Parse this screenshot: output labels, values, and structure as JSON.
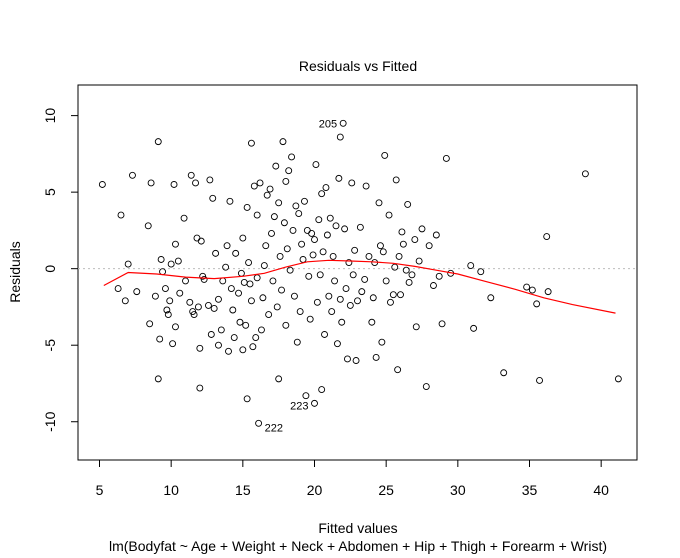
{
  "chart_data": {
    "type": "scatter",
    "title": "Residuals vs Fitted",
    "xlabel": "Fitted values",
    "subtitle": "lm(Bodyfat ~ Age + Weight + Neck + Abdomen + Hip + Thigh + Forearm + Wrist)",
    "ylabel": "Residuals",
    "xlim": [
      3.5,
      42.5
    ],
    "ylim": [
      -12.5,
      12
    ],
    "xticks": [
      5,
      10,
      15,
      20,
      25,
      30,
      35,
      40
    ],
    "yticks": [
      -10,
      -5,
      0,
      5,
      10
    ],
    "grid": false,
    "reference_line": {
      "y": 0,
      "style": "dotted",
      "color": "#bdbdbd"
    },
    "smoother": {
      "color": "#ff0000",
      "x": [
        5.3,
        7,
        9,
        11,
        13,
        15,
        16.5,
        18,
        19.5,
        21,
        22.5,
        24,
        25.5,
        27,
        28.5,
        30,
        32,
        34,
        36,
        38,
        41
      ],
      "y": [
        -1.1,
        -0.25,
        -0.35,
        -0.55,
        -0.65,
        -0.5,
        -0.3,
        0.1,
        0.45,
        0.55,
        0.5,
        0.45,
        0.35,
        0.15,
        -0.1,
        -0.35,
        -0.85,
        -1.35,
        -1.9,
        -2.35,
        -2.9
      ]
    },
    "labeled_points": [
      {
        "label": "205",
        "x": 22.0,
        "y": 9.5
      },
      {
        "label": "223",
        "x": 20.0,
        "y": -8.8
      },
      {
        "label": "222",
        "x": 16.1,
        "y": -10.1
      }
    ],
    "points": [
      {
        "x": 5.2,
        "y": 5.5
      },
      {
        "x": 6.3,
        "y": -1.3
      },
      {
        "x": 6.5,
        "y": 3.5
      },
      {
        "x": 6.8,
        "y": -2.1
      },
      {
        "x": 7.0,
        "y": 0.3
      },
      {
        "x": 7.3,
        "y": 6.1
      },
      {
        "x": 7.6,
        "y": -1.5
      },
      {
        "x": 8.4,
        "y": 2.8
      },
      {
        "x": 8.6,
        "y": 5.6
      },
      {
        "x": 8.5,
        "y": -3.6
      },
      {
        "x": 8.9,
        "y": -1.8
      },
      {
        "x": 9.1,
        "y": 8.3
      },
      {
        "x": 9.1,
        "y": -7.2
      },
      {
        "x": 9.2,
        "y": -4.6
      },
      {
        "x": 9.3,
        "y": 0.6
      },
      {
        "x": 9.4,
        "y": -0.2
      },
      {
        "x": 9.6,
        "y": -1.3
      },
      {
        "x": 9.7,
        "y": -2.7
      },
      {
        "x": 9.8,
        "y": -3.0
      },
      {
        "x": 9.9,
        "y": -2.1
      },
      {
        "x": 10.0,
        "y": 0.3
      },
      {
        "x": 10.1,
        "y": -4.9
      },
      {
        "x": 10.2,
        "y": 5.5
      },
      {
        "x": 10.3,
        "y": -3.8
      },
      {
        "x": 10.3,
        "y": 1.6
      },
      {
        "x": 10.5,
        "y": 0.5
      },
      {
        "x": 10.6,
        "y": -1.6
      },
      {
        "x": 10.9,
        "y": 3.3
      },
      {
        "x": 11.0,
        "y": -0.8
      },
      {
        "x": 11.3,
        "y": -2.2
      },
      {
        "x": 11.4,
        "y": 6.1
      },
      {
        "x": 11.5,
        "y": -2.8
      },
      {
        "x": 11.6,
        "y": -3.0
      },
      {
        "x": 11.7,
        "y": 5.6
      },
      {
        "x": 11.8,
        "y": 2.0
      },
      {
        "x": 11.9,
        "y": -2.5
      },
      {
        "x": 12.0,
        "y": -5.2
      },
      {
        "x": 12.0,
        "y": -7.8
      },
      {
        "x": 12.1,
        "y": 1.8
      },
      {
        "x": 12.2,
        "y": -0.5
      },
      {
        "x": 12.3,
        "y": -0.7
      },
      {
        "x": 12.6,
        "y": -2.4
      },
      {
        "x": 12.7,
        "y": 5.8
      },
      {
        "x": 12.8,
        "y": -4.3
      },
      {
        "x": 12.9,
        "y": 4.6
      },
      {
        "x": 13.0,
        "y": -2.6
      },
      {
        "x": 13.1,
        "y": 1.0
      },
      {
        "x": 13.3,
        "y": -2.0
      },
      {
        "x": 13.3,
        "y": -5.0
      },
      {
        "x": 13.5,
        "y": -4.0
      },
      {
        "x": 13.6,
        "y": -0.8
      },
      {
        "x": 13.8,
        "y": 0.1
      },
      {
        "x": 13.9,
        "y": 1.5
      },
      {
        "x": 14.0,
        "y": -5.4
      },
      {
        "x": 14.1,
        "y": 4.4
      },
      {
        "x": 14.2,
        "y": -1.3
      },
      {
        "x": 14.3,
        "y": -2.7
      },
      {
        "x": 14.4,
        "y": -4.5
      },
      {
        "x": 14.5,
        "y": 1.0
      },
      {
        "x": 14.7,
        "y": -1.6
      },
      {
        "x": 14.8,
        "y": -3.5
      },
      {
        "x": 14.9,
        "y": -0.3
      },
      {
        "x": 15.0,
        "y": 2.0
      },
      {
        "x": 15.0,
        "y": -5.3
      },
      {
        "x": 15.1,
        "y": -0.9
      },
      {
        "x": 15.2,
        "y": -3.7
      },
      {
        "x": 15.3,
        "y": 4.0
      },
      {
        "x": 15.3,
        "y": -8.5
      },
      {
        "x": 15.4,
        "y": 0.4
      },
      {
        "x": 15.5,
        "y": -1.0
      },
      {
        "x": 15.6,
        "y": 8.2
      },
      {
        "x": 15.6,
        "y": -2.1
      },
      {
        "x": 15.7,
        "y": -5.1
      },
      {
        "x": 15.8,
        "y": 5.4
      },
      {
        "x": 15.9,
        "y": -4.5
      },
      {
        "x": 16.0,
        "y": 3.5
      },
      {
        "x": 16.0,
        "y": -0.6
      },
      {
        "x": 16.1,
        "y": -10.1
      },
      {
        "x": 16.2,
        "y": 5.6
      },
      {
        "x": 16.3,
        "y": -4.0
      },
      {
        "x": 16.4,
        "y": -1.9
      },
      {
        "x": 16.5,
        "y": 0.2
      },
      {
        "x": 16.6,
        "y": 1.5
      },
      {
        "x": 16.7,
        "y": 4.8
      },
      {
        "x": 16.8,
        "y": -3.0
      },
      {
        "x": 16.9,
        "y": 5.2
      },
      {
        "x": 17.0,
        "y": 2.3
      },
      {
        "x": 17.1,
        "y": -0.8
      },
      {
        "x": 17.2,
        "y": 3.4
      },
      {
        "x": 17.3,
        "y": 6.7
      },
      {
        "x": 17.4,
        "y": -2.5
      },
      {
        "x": 17.5,
        "y": -7.2
      },
      {
        "x": 17.5,
        "y": 4.3
      },
      {
        "x": 17.6,
        "y": 0.8
      },
      {
        "x": 17.7,
        "y": -1.4
      },
      {
        "x": 17.8,
        "y": 8.3
      },
      {
        "x": 17.9,
        "y": 3.0
      },
      {
        "x": 18.0,
        "y": 5.7
      },
      {
        "x": 18.0,
        "y": -3.7
      },
      {
        "x": 18.1,
        "y": 1.3
      },
      {
        "x": 18.2,
        "y": 6.4
      },
      {
        "x": 18.3,
        "y": -0.1
      },
      {
        "x": 18.4,
        "y": 7.3
      },
      {
        "x": 18.5,
        "y": 2.5
      },
      {
        "x": 18.6,
        "y": -1.8
      },
      {
        "x": 18.7,
        "y": 4.1
      },
      {
        "x": 18.8,
        "y": -4.8
      },
      {
        "x": 18.9,
        "y": 3.6
      },
      {
        "x": 19.0,
        "y": -2.8
      },
      {
        "x": 19.1,
        "y": 1.6
      },
      {
        "x": 19.2,
        "y": 0.6
      },
      {
        "x": 19.3,
        "y": 4.4
      },
      {
        "x": 19.4,
        "y": -8.3
      },
      {
        "x": 19.5,
        "y": 2.5
      },
      {
        "x": 19.6,
        "y": -0.5
      },
      {
        "x": 19.7,
        "y": -3.3
      },
      {
        "x": 19.8,
        "y": 2.3
      },
      {
        "x": 19.9,
        "y": 0.9
      },
      {
        "x": 20.0,
        "y": -8.8
      },
      {
        "x": 20.0,
        "y": 1.9
      },
      {
        "x": 20.1,
        "y": 6.8
      },
      {
        "x": 20.2,
        "y": -2.2
      },
      {
        "x": 20.3,
        "y": 3.2
      },
      {
        "x": 20.4,
        "y": -0.4
      },
      {
        "x": 20.5,
        "y": -7.9
      },
      {
        "x": 20.5,
        "y": 4.9
      },
      {
        "x": 20.6,
        "y": 1.1
      },
      {
        "x": 20.7,
        "y": -4.3
      },
      {
        "x": 20.8,
        "y": 5.3
      },
      {
        "x": 20.9,
        "y": 2.2
      },
      {
        "x": 21.0,
        "y": -1.8
      },
      {
        "x": 21.1,
        "y": 3.3
      },
      {
        "x": 21.2,
        "y": -2.8
      },
      {
        "x": 21.3,
        "y": 0.8
      },
      {
        "x": 21.4,
        "y": -0.8
      },
      {
        "x": 21.5,
        "y": 2.8
      },
      {
        "x": 21.6,
        "y": -4.9
      },
      {
        "x": 21.7,
        "y": 5.9
      },
      {
        "x": 21.8,
        "y": -2.0
      },
      {
        "x": 21.8,
        "y": 8.6
      },
      {
        "x": 21.9,
        "y": -3.5
      },
      {
        "x": 22.0,
        "y": 9.5
      },
      {
        "x": 22.1,
        "y": 2.6
      },
      {
        "x": 22.2,
        "y": -1.3
      },
      {
        "x": 22.3,
        "y": -5.9
      },
      {
        "x": 22.4,
        "y": 0.4
      },
      {
        "x": 22.5,
        "y": -2.4
      },
      {
        "x": 22.6,
        "y": 5.6
      },
      {
        "x": 22.7,
        "y": -0.4
      },
      {
        "x": 22.8,
        "y": 1.2
      },
      {
        "x": 22.9,
        "y": -6.0
      },
      {
        "x": 23.0,
        "y": -2.1
      },
      {
        "x": 23.2,
        "y": 2.7
      },
      {
        "x": 23.3,
        "y": -1.5
      },
      {
        "x": 23.5,
        "y": -0.7
      },
      {
        "x": 23.6,
        "y": 5.4
      },
      {
        "x": 23.8,
        "y": 0.8
      },
      {
        "x": 24.0,
        "y": -3.5
      },
      {
        "x": 24.1,
        "y": -1.9
      },
      {
        "x": 24.2,
        "y": 0.4
      },
      {
        "x": 24.3,
        "y": -5.8
      },
      {
        "x": 24.5,
        "y": 4.3
      },
      {
        "x": 24.6,
        "y": 1.5
      },
      {
        "x": 24.7,
        "y": -4.8
      },
      {
        "x": 24.8,
        "y": 1.1
      },
      {
        "x": 24.9,
        "y": 7.4
      },
      {
        "x": 25.0,
        "y": -0.8
      },
      {
        "x": 25.2,
        "y": 3.5
      },
      {
        "x": 25.3,
        "y": -2.2
      },
      {
        "x": 25.5,
        "y": -1.7
      },
      {
        "x": 25.6,
        "y": 0.1
      },
      {
        "x": 25.7,
        "y": 5.8
      },
      {
        "x": 25.8,
        "y": -6.6
      },
      {
        "x": 25.9,
        "y": 0.8
      },
      {
        "x": 26.0,
        "y": -1.7
      },
      {
        "x": 26.1,
        "y": 2.4
      },
      {
        "x": 26.2,
        "y": 1.6
      },
      {
        "x": 26.4,
        "y": -0.1
      },
      {
        "x": 26.5,
        "y": 4.2
      },
      {
        "x": 26.6,
        "y": -0.9
      },
      {
        "x": 26.8,
        "y": -0.4
      },
      {
        "x": 27.0,
        "y": 1.9
      },
      {
        "x": 27.1,
        "y": -3.8
      },
      {
        "x": 27.3,
        "y": 0.5
      },
      {
        "x": 27.5,
        "y": 2.6
      },
      {
        "x": 27.8,
        "y": -7.7
      },
      {
        "x": 28.0,
        "y": 1.5
      },
      {
        "x": 28.3,
        "y": -1.1
      },
      {
        "x": 28.5,
        "y": 2.2
      },
      {
        "x": 28.7,
        "y": -0.5
      },
      {
        "x": 28.9,
        "y": -3.6
      },
      {
        "x": 29.2,
        "y": 7.2
      },
      {
        "x": 29.5,
        "y": -0.3
      },
      {
        "x": 30.9,
        "y": 0.2
      },
      {
        "x": 31.1,
        "y": -3.9
      },
      {
        "x": 31.6,
        "y": -0.2
      },
      {
        "x": 32.3,
        "y": -1.9
      },
      {
        "x": 33.2,
        "y": -6.8
      },
      {
        "x": 34.8,
        "y": -1.2
      },
      {
        "x": 35.2,
        "y": -1.4
      },
      {
        "x": 35.5,
        "y": -2.3
      },
      {
        "x": 35.7,
        "y": -7.3
      },
      {
        "x": 36.2,
        "y": 2.1
      },
      {
        "x": 36.3,
        "y": -1.5
      },
      {
        "x": 38.9,
        "y": 6.2
      },
      {
        "x": 41.2,
        "y": -7.2
      }
    ]
  }
}
